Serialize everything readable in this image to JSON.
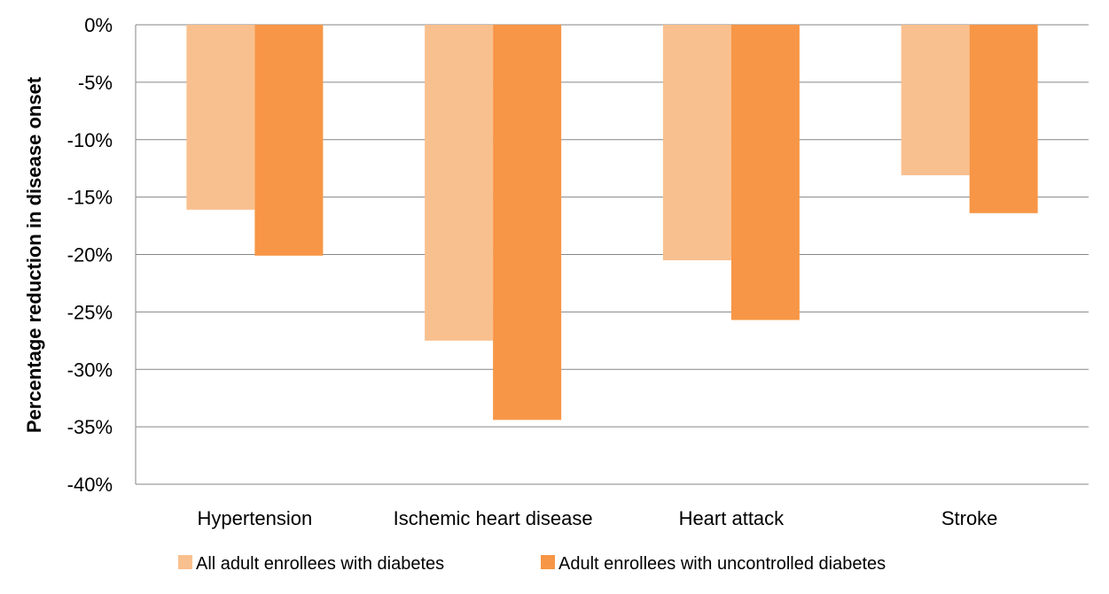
{
  "chart_data": {
    "type": "bar",
    "title": "",
    "xlabel": "",
    "ylabel": "Percentage reduction in disease onset",
    "ylim": [
      -40,
      0
    ],
    "yticks": [
      0,
      -5,
      -10,
      -15,
      -20,
      -25,
      -30,
      -35,
      -40
    ],
    "ytick_labels": [
      "0%",
      "-5%",
      "-10%",
      "-15%",
      "-20%",
      "-25%",
      "-30%",
      "-35%",
      "-40%"
    ],
    "grid": true,
    "legend_position": "bottom",
    "categories": [
      "Hypertension",
      "Ischemic heart disease",
      "Heart attack",
      "Stroke"
    ],
    "series": [
      {
        "name": "All adult enrollees with diabetes",
        "color": "#F9C08F",
        "values": [
          -16.1,
          -27.5,
          -20.5,
          -13.1
        ]
      },
      {
        "name": "Adult enrollees with uncontrolled diabetes",
        "color": "#F79646",
        "values": [
          -20.1,
          -34.4,
          -25.7,
          -16.4
        ]
      }
    ]
  }
}
